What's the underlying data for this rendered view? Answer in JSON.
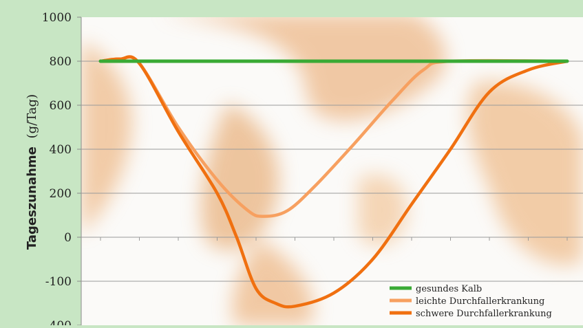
{
  "chart_data": {
    "type": "line",
    "ylabel_bold": "Tageszunahme",
    "ylabel_unit": "(g/Tag)",
    "xlabel": "",
    "title": "",
    "y_ticks": [
      "1000",
      "800",
      "600",
      "400",
      "200",
      "0",
      "-100",
      "-400"
    ],
    "x": [
      0,
      1,
      2,
      3,
      4,
      5,
      6,
      7,
      8,
      9,
      10,
      11,
      12
    ],
    "grid": true,
    "legend_position": "bottom-right",
    "series": [
      {
        "name": "gesundes Kalb",
        "color": "#3aaa35",
        "points": [
          [
            0,
            800
          ],
          [
            12,
            800
          ]
        ]
      },
      {
        "name": "leichte Durchfallerkrankung",
        "color": "#f7a060",
        "points": [
          [
            0,
            800
          ],
          [
            0.5,
            810
          ],
          [
            1,
            790
          ],
          [
            2,
            500
          ],
          [
            3,
            260
          ],
          [
            3.8,
            120
          ],
          [
            4.2,
            95
          ],
          [
            4.8,
            120
          ],
          [
            5.5,
            230
          ],
          [
            6.5,
            420
          ],
          [
            7.5,
            620
          ],
          [
            8.3,
            760
          ],
          [
            9,
            800
          ],
          [
            12,
            800
          ]
        ]
      },
      {
        "name": "schwere Durchfallerkrankung",
        "color": "#f07010",
        "points": [
          [
            0,
            800
          ],
          [
            0.5,
            810
          ],
          [
            1,
            790
          ],
          [
            2,
            480
          ],
          [
            3,
            200
          ],
          [
            3.5,
            0
          ],
          [
            4,
            -150
          ],
          [
            4.5,
            -250
          ],
          [
            5,
            -270
          ],
          [
            6,
            -180
          ],
          [
            7,
            -50
          ],
          [
            8,
            150
          ],
          [
            9,
            400
          ],
          [
            10,
            660
          ],
          [
            11,
            760
          ],
          [
            12,
            800
          ]
        ]
      }
    ]
  }
}
